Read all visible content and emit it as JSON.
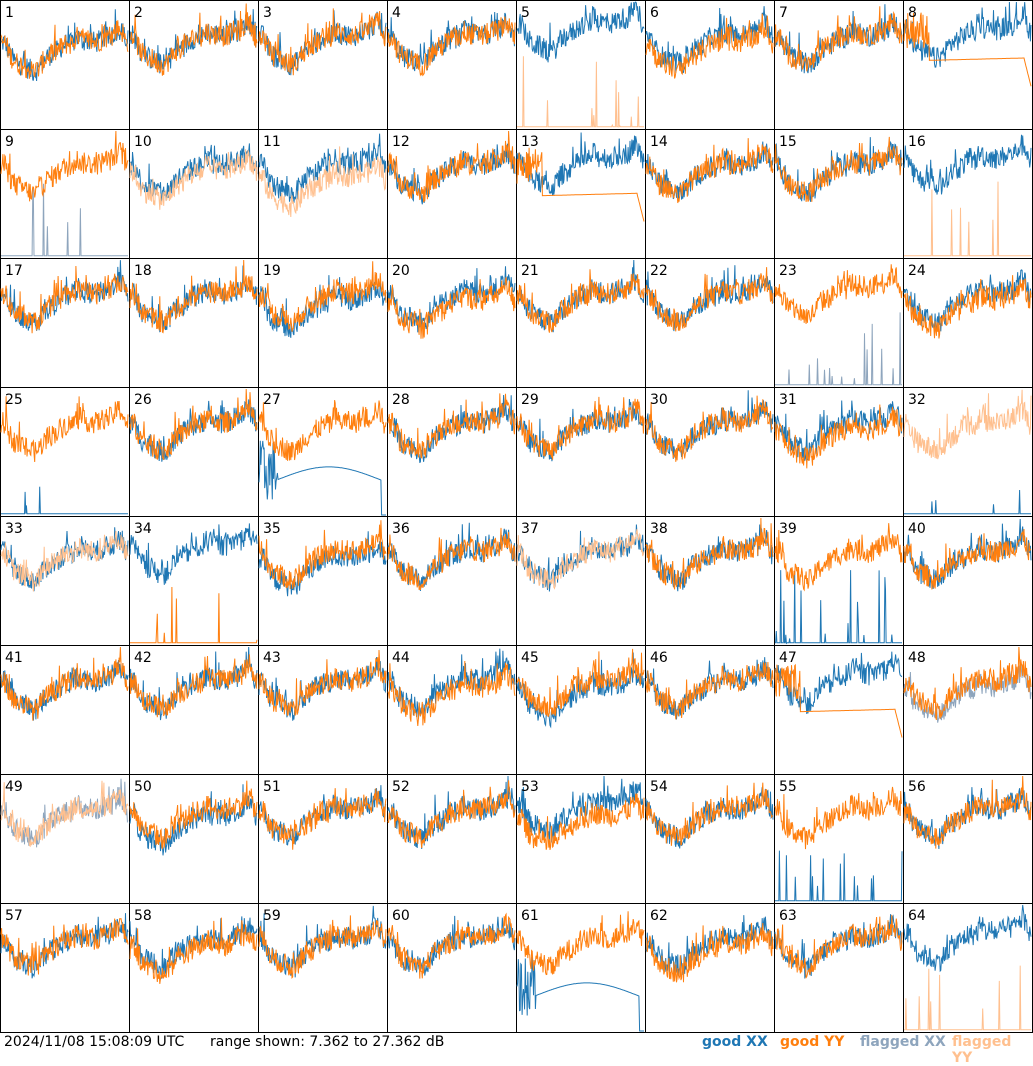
{
  "footer": {
    "timestamp": "2024/11/08 15:08:09 UTC",
    "range_text": "range shown: 7.362 to 27.362 dB"
  },
  "legend": [
    {
      "label": "good XX",
      "color": "#1f77b4"
    },
    {
      "label": "good YY",
      "color": "#ff7f0e"
    },
    {
      "label": "flagged XX",
      "color": "#8ea5bd"
    },
    {
      "label": "flagged YY",
      "color": "#ffc08f"
    }
  ],
  "chart_data": {
    "type": "line",
    "ylim": [
      7.362,
      27.362
    ],
    "y_unit": "dB",
    "grid": {
      "rows": 8,
      "cols": 8
    },
    "series_names": [
      "good XX",
      "good YY",
      "flagged XX",
      "flagged YY"
    ],
    "panels": [
      {
        "id": "1",
        "xx": "good",
        "yy": "good",
        "xx_level": 19,
        "yy_level": 19,
        "pattern": "normal"
      },
      {
        "id": "2",
        "xx": "good",
        "yy": "good",
        "xx_level": 20,
        "yy_level": 20,
        "pattern": "normal"
      },
      {
        "id": "3",
        "xx": "good",
        "yy": "good",
        "xx_level": 20,
        "yy_level": 20,
        "pattern": "normal"
      },
      {
        "id": "4",
        "xx": "good",
        "yy": "good",
        "xx_level": 20,
        "yy_level": 20,
        "pattern": "normal"
      },
      {
        "id": "5",
        "xx": "good",
        "yy": "flagged",
        "xx_level": 22,
        "yy_level": 8,
        "pattern": "yy-spikes"
      },
      {
        "id": "6",
        "xx": "good",
        "yy": "good",
        "xx_level": 20,
        "yy_level": 19,
        "pattern": "normal"
      },
      {
        "id": "7",
        "xx": "good",
        "yy": "good",
        "xx_level": 20,
        "yy_level": 20,
        "pattern": "normal"
      },
      {
        "id": "8",
        "xx": "good",
        "yy": "good",
        "xx_level": 21,
        "yy_level": 19,
        "pattern": "yy-plateau"
      },
      {
        "id": "9",
        "xx": "flagged",
        "yy": "good",
        "xx_level": 9,
        "yy_level": 20,
        "pattern": "xx-spikes"
      },
      {
        "id": "10",
        "xx": "good",
        "yy": "flagged",
        "xx_level": 20,
        "yy_level": 19,
        "pattern": "normal"
      },
      {
        "id": "11",
        "xx": "good",
        "yy": "flagged",
        "xx_level": 20,
        "yy_level": 18,
        "pattern": "normal"
      },
      {
        "id": "12",
        "xx": "good",
        "yy": "good",
        "xx_level": 20,
        "yy_level": 20,
        "pattern": "normal"
      },
      {
        "id": "13",
        "xx": "good",
        "yy": "good",
        "xx_level": 21,
        "yy_level": 18,
        "pattern": "yy-plateau"
      },
      {
        "id": "14",
        "xx": "good",
        "yy": "good",
        "xx_level": 20,
        "yy_level": 20,
        "pattern": "normal"
      },
      {
        "id": "15",
        "xx": "good",
        "yy": "good",
        "xx_level": 20,
        "yy_level": 20,
        "pattern": "normal"
      },
      {
        "id": "16",
        "xx": "good",
        "yy": "flagged",
        "xx_level": 21,
        "yy_level": 8,
        "pattern": "yy-spikes"
      },
      {
        "id": "17",
        "xx": "good",
        "yy": "good",
        "xx_level": 20,
        "yy_level": 20,
        "pattern": "normal"
      },
      {
        "id": "18",
        "xx": "good",
        "yy": "good",
        "xx_level": 20,
        "yy_level": 20,
        "pattern": "normal"
      },
      {
        "id": "19",
        "xx": "good",
        "yy": "good",
        "xx_level": 19,
        "yy_level": 20,
        "pattern": "normal"
      },
      {
        "id": "20",
        "xx": "good",
        "yy": "good",
        "xx_level": 20,
        "yy_level": 19,
        "pattern": "normal"
      },
      {
        "id": "21",
        "xx": "good",
        "yy": "good",
        "xx_level": 20,
        "yy_level": 20,
        "pattern": "normal"
      },
      {
        "id": "22",
        "xx": "good",
        "yy": "good",
        "xx_level": 20,
        "yy_level": 20,
        "pattern": "normal"
      },
      {
        "id": "23",
        "xx": "flagged",
        "yy": "good",
        "xx_level": 9,
        "yy_level": 21,
        "pattern": "xx-spikes"
      },
      {
        "id": "24",
        "xx": "good",
        "yy": "good",
        "xx_level": 20,
        "yy_level": 19,
        "pattern": "normal"
      },
      {
        "id": "25",
        "xx": "good",
        "yy": "good",
        "xx_level": 8,
        "yy_level": 20,
        "pattern": "xx-low"
      },
      {
        "id": "26",
        "xx": "good",
        "yy": "good",
        "xx_level": 20,
        "yy_level": 20,
        "pattern": "normal"
      },
      {
        "id": "27",
        "xx": "good",
        "yy": "good",
        "xx_level": 13,
        "yy_level": 20,
        "pattern": "xx-dome"
      },
      {
        "id": "28",
        "xx": "good",
        "yy": "good",
        "xx_level": 20,
        "yy_level": 20,
        "pattern": "normal"
      },
      {
        "id": "29",
        "xx": "good",
        "yy": "good",
        "xx_level": 20,
        "yy_level": 20,
        "pattern": "normal"
      },
      {
        "id": "30",
        "xx": "good",
        "yy": "good",
        "xx_level": 20,
        "yy_level": 20,
        "pattern": "normal"
      },
      {
        "id": "31",
        "xx": "good",
        "yy": "good",
        "xx_level": 20,
        "yy_level": 19,
        "pattern": "normal"
      },
      {
        "id": "32",
        "xx": "good",
        "yy": "flagged",
        "xx_level": 8,
        "yy_level": 20,
        "pattern": "xx-low"
      },
      {
        "id": "33",
        "xx": "good",
        "yy": "flagged",
        "xx_level": 20,
        "yy_level": 20,
        "pattern": "normal"
      },
      {
        "id": "34",
        "xx": "good",
        "yy": "good",
        "xx_level": 21,
        "yy_level": 8,
        "pattern": "yy-spikes"
      },
      {
        "id": "35",
        "xx": "good",
        "yy": "good",
        "xx_level": 19,
        "yy_level": 20,
        "pattern": "normal"
      },
      {
        "id": "36",
        "xx": "good",
        "yy": "good",
        "xx_level": 20,
        "yy_level": 20,
        "pattern": "normal"
      },
      {
        "id": "37",
        "xx": "good",
        "yy": "flagged",
        "xx_level": 20,
        "yy_level": 20,
        "pattern": "normal"
      },
      {
        "id": "38",
        "xx": "good",
        "yy": "good",
        "xx_level": 20,
        "yy_level": 20,
        "pattern": "normal"
      },
      {
        "id": "39",
        "xx": "good",
        "yy": "good",
        "xx_level": 8,
        "yy_level": 20,
        "pattern": "xx-spikes"
      },
      {
        "id": "40",
        "xx": "good",
        "yy": "good",
        "xx_level": 20,
        "yy_level": 20,
        "pattern": "normal"
      },
      {
        "id": "41",
        "xx": "good",
        "yy": "good",
        "xx_level": 20,
        "yy_level": 20,
        "pattern": "normal"
      },
      {
        "id": "42",
        "xx": "good",
        "yy": "good",
        "xx_level": 20,
        "yy_level": 20,
        "pattern": "normal"
      },
      {
        "id": "43",
        "xx": "good",
        "yy": "good",
        "xx_level": 20,
        "yy_level": 20,
        "pattern": "normal"
      },
      {
        "id": "44",
        "xx": "good",
        "yy": "good",
        "xx_level": 20,
        "yy_level": 19,
        "pattern": "normal"
      },
      {
        "id": "45",
        "xx": "good",
        "yy": "good",
        "xx_level": 19,
        "yy_level": 20,
        "pattern": "normal"
      },
      {
        "id": "46",
        "xx": "good",
        "yy": "good",
        "xx_level": 20,
        "yy_level": 20,
        "pattern": "normal"
      },
      {
        "id": "47",
        "xx": "good",
        "yy": "good",
        "xx_level": 21,
        "yy_level": 18,
        "pattern": "yy-plateau"
      },
      {
        "id": "48",
        "xx": "flagged",
        "yy": "good",
        "xx_level": 19,
        "yy_level": 20,
        "pattern": "normal"
      },
      {
        "id": "49",
        "xx": "flagged",
        "yy": "flagged",
        "xx_level": 20,
        "yy_level": 20,
        "pattern": "normal"
      },
      {
        "id": "50",
        "xx": "good",
        "yy": "good",
        "xx_level": 19,
        "yy_level": 20,
        "pattern": "normal"
      },
      {
        "id": "51",
        "xx": "good",
        "yy": "good",
        "xx_level": 20,
        "yy_level": 20,
        "pattern": "normal"
      },
      {
        "id": "52",
        "xx": "good",
        "yy": "good",
        "xx_level": 20,
        "yy_level": 20,
        "pattern": "normal"
      },
      {
        "id": "53",
        "xx": "good",
        "yy": "good",
        "xx_level": 21,
        "yy_level": 19,
        "pattern": "normal"
      },
      {
        "id": "54",
        "xx": "good",
        "yy": "good",
        "xx_level": 20,
        "yy_level": 20,
        "pattern": "normal"
      },
      {
        "id": "55",
        "xx": "good",
        "yy": "good",
        "xx_level": 8,
        "yy_level": 20,
        "pattern": "xx-spikes"
      },
      {
        "id": "56",
        "xx": "good",
        "yy": "good",
        "xx_level": 20,
        "yy_level": 20,
        "pattern": "normal"
      },
      {
        "id": "57",
        "xx": "good",
        "yy": "good",
        "xx_level": 20,
        "yy_level": 20,
        "pattern": "normal"
      },
      {
        "id": "58",
        "xx": "good",
        "yy": "good",
        "xx_level": 20,
        "yy_level": 19,
        "pattern": "normal"
      },
      {
        "id": "59",
        "xx": "good",
        "yy": "good",
        "xx_level": 20,
        "yy_level": 20,
        "pattern": "normal"
      },
      {
        "id": "60",
        "xx": "good",
        "yy": "good",
        "xx_level": 20,
        "yy_level": 20,
        "pattern": "normal"
      },
      {
        "id": "61",
        "xx": "good",
        "yy": "good",
        "xx_level": 13,
        "yy_level": 20,
        "pattern": "xx-dome"
      },
      {
        "id": "62",
        "xx": "good",
        "yy": "good",
        "xx_level": 20,
        "yy_level": 19,
        "pattern": "normal"
      },
      {
        "id": "63",
        "xx": "good",
        "yy": "good",
        "xx_level": 20,
        "yy_level": 20,
        "pattern": "normal"
      },
      {
        "id": "64",
        "xx": "good",
        "yy": "flagged",
        "xx_level": 21,
        "yy_level": 8,
        "pattern": "yy-spikes"
      }
    ]
  }
}
